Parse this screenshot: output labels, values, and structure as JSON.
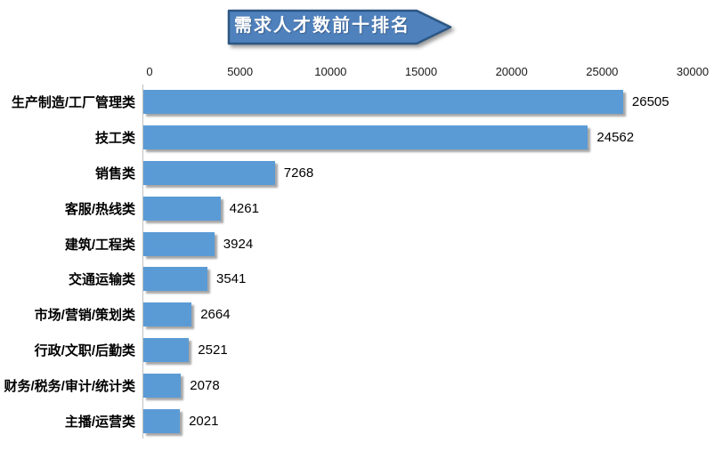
{
  "title": {
    "text": "需求人才数前十排名"
  },
  "chart_data": {
    "type": "bar",
    "orientation": "horizontal",
    "title": "需求人才数前十排名",
    "categories": [
      "生产制造/工厂管理类",
      "技工类",
      "销售类",
      "客服/热线类",
      "建筑/工程类",
      "交通运输类",
      "市场/营销/策划类",
      "行政/文职/后勤类",
      "财务/税务/审计/统计类",
      "主播/运营类"
    ],
    "values": [
      26505,
      24562,
      7268,
      4261,
      3924,
      3541,
      2664,
      2521,
      2078,
      2021
    ],
    "data_labels": [
      "26505",
      "24562",
      "7268",
      "4261",
      "3924",
      "3541",
      "2664",
      "2521",
      "2078",
      "2021"
    ],
    "x_ticks": [
      "0",
      "5000",
      "10000",
      "15000",
      "20000",
      "25000",
      "30000"
    ],
    "xlim": [
      0,
      30000
    ],
    "xlabel": "",
    "ylabel": "",
    "gridlines": false,
    "legend": "none",
    "value_axis_position": "top"
  },
  "colors": {
    "bar": "#5B9BD5",
    "banner_fill": "#4F81BD",
    "banner_border": "#2C5784",
    "banner_text": "#FFFFFF",
    "axis_line": "#BFBFBF",
    "background": "#FFFFFF"
  }
}
